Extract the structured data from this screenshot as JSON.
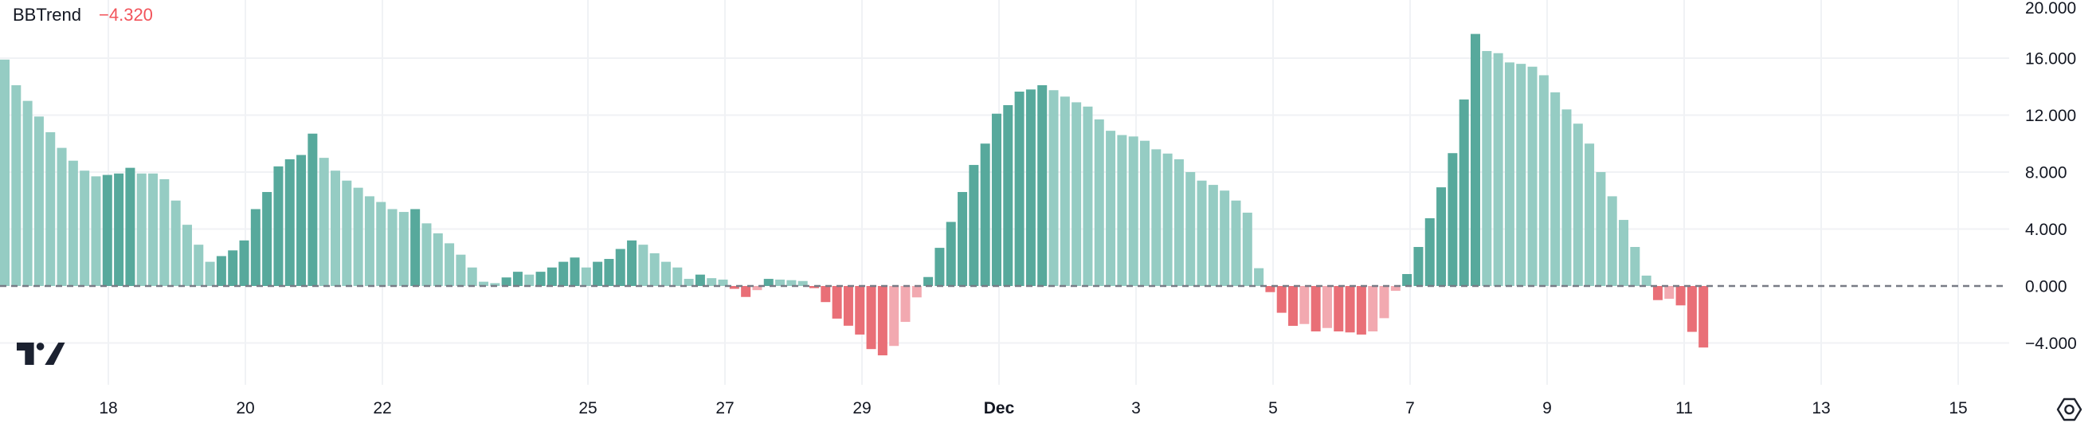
{
  "indicator": {
    "name": "BBTrend",
    "value": "−4.320"
  },
  "colors": {
    "background": "#ffffff",
    "text": "#131722",
    "value_text": "#F2545B",
    "grid": "#F0F2F5",
    "zero_line": "#787B86",
    "logo": "#1B2130",
    "bar_palette": {
      "lg": "#95CCC3",
      "dg": "#57A99C",
      "lr": "#F2A9B0",
      "dr": "#E96F77"
    }
  },
  "y_axis": {
    "tick_labels": [
      "20.000",
      "16.000",
      "12.000",
      "8.000",
      "4.000",
      "0.000",
      "−4.000"
    ],
    "tick_values": [
      20,
      16,
      12,
      8,
      4,
      0,
      -4
    ]
  },
  "x_axis": {
    "tick_labels": [
      {
        "label": "18",
        "day": 0,
        "bold": false
      },
      {
        "label": "20",
        "day": 2,
        "bold": false
      },
      {
        "label": "22",
        "day": 4,
        "bold": false
      },
      {
        "label": "25",
        "day": 7,
        "bold": false
      },
      {
        "label": "27",
        "day": 9,
        "bold": false
      },
      {
        "label": "29",
        "day": 11,
        "bold": false
      },
      {
        "label": "Dec",
        "day": 13,
        "bold": true
      },
      {
        "label": "3",
        "day": 15,
        "bold": false
      },
      {
        "label": "5",
        "day": 17,
        "bold": false
      },
      {
        "label": "7",
        "day": 19,
        "bold": false
      },
      {
        "label": "9",
        "day": 21,
        "bold": false
      },
      {
        "label": "11",
        "day": 23,
        "bold": false
      },
      {
        "label": "13",
        "day": 25,
        "bold": false
      },
      {
        "label": "15",
        "day": 27,
        "bold": false
      }
    ]
  },
  "chart_data": {
    "type": "bar",
    "title": "BBTrend",
    "last_value": -4.32,
    "bar_interval": "4h",
    "ylim": [
      -6.9,
      20.1
    ],
    "grid": true,
    "zero_line_style": "dashed",
    "legend_note": "lg=positive falling, dg=positive rising, lr=negative rising, dr=negative falling",
    "values": [
      15.9,
      14.1,
      13.0,
      11.9,
      10.8,
      9.7,
      8.8,
      8.1,
      7.7,
      7.8,
      7.9,
      8.3,
      7.9,
      7.9,
      7.5,
      6.0,
      4.3,
      2.9,
      1.7,
      2.1,
      2.5,
      3.2,
      5.4,
      6.6,
      8.4,
      8.9,
      9.2,
      10.7,
      9.0,
      8.1,
      7.4,
      6.9,
      6.3,
      5.9,
      5.4,
      5.2,
      5.4,
      4.4,
      3.7,
      3.0,
      2.2,
      1.3,
      0.3,
      0.2,
      0.6,
      1.0,
      0.8,
      1.0,
      1.3,
      1.7,
      2.0,
      1.3,
      1.7,
      1.9,
      2.6,
      3.2,
      2.9,
      2.3,
      1.7,
      1.3,
      0.5,
      0.8,
      0.55,
      0.45,
      -0.2,
      -0.77,
      -0.29,
      0.5,
      0.45,
      0.41,
      0.35,
      -0.15,
      -1.13,
      -2.29,
      -2.79,
      -3.41,
      -4.43,
      -4.87,
      -4.21,
      -2.52,
      -0.8,
      0.63,
      2.68,
      4.5,
      6.6,
      8.5,
      10.0,
      12.1,
      12.7,
      13.65,
      13.8,
      14.1,
      13.75,
      13.3,
      12.9,
      12.6,
      11.7,
      10.9,
      10.6,
      10.5,
      10.2,
      9.6,
      9.3,
      8.9,
      8.0,
      7.4,
      7.1,
      6.7,
      6.0,
      5.15,
      1.25,
      -0.43,
      -1.88,
      -2.8,
      -2.67,
      -3.19,
      -2.95,
      -3.19,
      -3.26,
      -3.41,
      -3.19,
      -2.26,
      -0.34,
      0.84,
      2.74,
      4.76,
      6.93,
      9.33,
      13.1,
      17.7,
      16.5,
      16.35,
      15.7,
      15.6,
      15.4,
      14.8,
      13.6,
      12.4,
      11.4,
      10.0,
      8.0,
      6.3,
      4.64,
      2.74,
      0.73,
      -0.99,
      -0.9,
      -1.36,
      -3.22,
      -4.32
    ],
    "colors": [
      "lg",
      "lg",
      "lg",
      "lg",
      "lg",
      "lg",
      "lg",
      "lg",
      "lg",
      "dg",
      "dg",
      "dg",
      "lg",
      "lg",
      "lg",
      "lg",
      "lg",
      "lg",
      "lg",
      "dg",
      "dg",
      "dg",
      "dg",
      "dg",
      "dg",
      "dg",
      "dg",
      "dg",
      "lg",
      "lg",
      "lg",
      "lg",
      "lg",
      "lg",
      "lg",
      "lg",
      "dg",
      "lg",
      "lg",
      "lg",
      "lg",
      "lg",
      "lg",
      "lg",
      "dg",
      "dg",
      "lg",
      "dg",
      "dg",
      "dg",
      "dg",
      "lg",
      "dg",
      "dg",
      "dg",
      "dg",
      "lg",
      "lg",
      "lg",
      "lg",
      "lg",
      "dg",
      "lg",
      "lg",
      "dr",
      "dr",
      "lr",
      "dg",
      "lg",
      "lg",
      "lg",
      "dr",
      "dr",
      "dr",
      "dr",
      "dr",
      "dr",
      "dr",
      "lr",
      "lr",
      "lr",
      "dg",
      "dg",
      "dg",
      "dg",
      "dg",
      "dg",
      "dg",
      "dg",
      "dg",
      "dg",
      "dg",
      "lg",
      "lg",
      "lg",
      "lg",
      "lg",
      "lg",
      "lg",
      "lg",
      "lg",
      "lg",
      "lg",
      "lg",
      "lg",
      "lg",
      "lg",
      "lg",
      "lg",
      "lg",
      "lg",
      "dr",
      "dr",
      "dr",
      "lr",
      "dr",
      "lr",
      "dr",
      "dr",
      "dr",
      "lr",
      "lr",
      "lr",
      "dg",
      "dg",
      "dg",
      "dg",
      "dg",
      "dg",
      "dg",
      "lg",
      "lg",
      "lg",
      "lg",
      "lg",
      "lg",
      "lg",
      "lg",
      "lg",
      "lg",
      "lg",
      "lg",
      "lg",
      "lg",
      "lg",
      "dr",
      "lr",
      "dr",
      "dr",
      "dr"
    ]
  }
}
